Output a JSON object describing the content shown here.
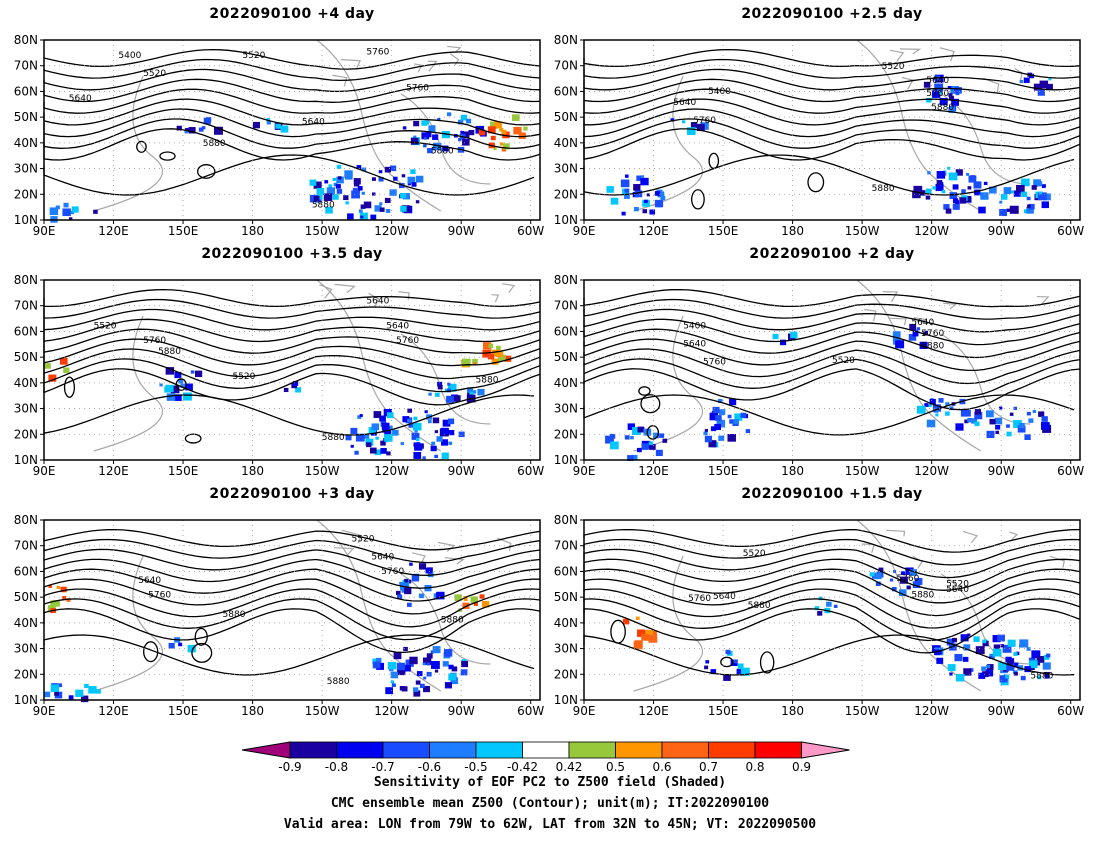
{
  "panels": [
    {
      "title": "2022090100  +4 day",
      "contour_labels": [
        "5400",
        "5520",
        "5640",
        "5760",
        "5640",
        "5880",
        "5520",
        "5760",
        "5880",
        "5880"
      ]
    },
    {
      "title": "2022090100  +2.5 day",
      "contour_labels": [
        "5400",
        "5640",
        "5760",
        "5520",
        "5640",
        "5760",
        "5880",
        "5880"
      ]
    },
    {
      "title": "2022090100  +3.5 day",
      "contour_labels": [
        "5520",
        "5640",
        "5760",
        "5880",
        "5520",
        "5640",
        "5760",
        "5880",
        "5880"
      ]
    },
    {
      "title": "2022090100  +2 day",
      "contour_labels": [
        "5400",
        "5640",
        "5760",
        "5520",
        "5640",
        "5760",
        "5880"
      ]
    },
    {
      "title": "2022090100  +3 day",
      "contour_labels": [
        "5640",
        "5760",
        "5880",
        "5520",
        "5640",
        "5760",
        "5880",
        "5880"
      ]
    },
    {
      "title": "2022090100  +1.5 day",
      "contour_labels": [
        "5520",
        "5760",
        "5640",
        "5880",
        "5760",
        "5880",
        "5520",
        "5640",
        "5880"
      ]
    }
  ],
  "axes": {
    "lat_labels": [
      "80N",
      "70N",
      "60N",
      "50N",
      "40N",
      "30N",
      "20N",
      "10N"
    ],
    "lon_labels": [
      "90E",
      "120E",
      "150E",
      "180",
      "150W",
      "120W",
      "90W",
      "60W"
    ]
  },
  "colorbar": {
    "tick_labels": [
      "-0.9",
      "-0.8",
      "-0.7",
      "-0.6",
      "-0.5",
      "-0.42",
      "0.42",
      "0.5",
      "0.6",
      "0.7",
      "0.8",
      "0.9"
    ],
    "colors": [
      "#a0007a",
      "#1a00a0",
      "#0000f0",
      "#1a4cff",
      "#1e7cff",
      "#00c8ff",
      "#ffffff",
      "#96c83c",
      "#ff9600",
      "#ff6414",
      "#ff3c00",
      "#ff0000",
      "#ff9ac8"
    ]
  },
  "caption": {
    "line1": "Sensitivity of EOF PC2 to Z500 field (Shaded)",
    "line2": "CMC ensemble mean Z500 (Contour); unit(m); IT:2022090100",
    "line3": "Valid area: LON from 79W to 62W, LAT from 32N to 45N; VT: 2022090500"
  }
}
